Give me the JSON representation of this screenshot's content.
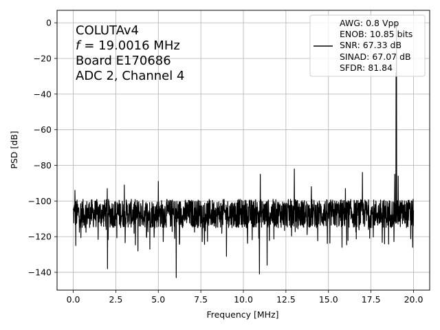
{
  "chart_data": {
    "type": "line",
    "xlabel": "Frequency [MHz]",
    "ylabel": "PSD [dB]",
    "xlim": [
      -0.95,
      20.95
    ],
    "ylim": [
      -150,
      7
    ],
    "xticks": [
      0.0,
      2.5,
      5.0,
      7.5,
      10.0,
      12.5,
      15.0,
      17.5,
      20.0
    ],
    "xtick_labels": [
      "0.0",
      "2.5",
      "5.0",
      "7.5",
      "10.0",
      "12.5",
      "15.0",
      "17.5",
      "20.0"
    ],
    "yticks": [
      0,
      -20,
      -40,
      -60,
      -80,
      -100,
      -120,
      -140
    ],
    "ytick_labels": [
      "0",
      "−20",
      "−40",
      "−60",
      "−80",
      "−100",
      "−120",
      "−140"
    ],
    "grid": true,
    "annotation": {
      "lines": [
        "COLUTAv4",
        "= 19.0016 MHz",
        "Board E170686",
        "ADC 2, Channel 4"
      ],
      "italic_symbol": "f"
    },
    "legend": {
      "position": "top-right",
      "lines": [
        "AWG: 0.8 Vpp",
        "ENOB: 10.85 bits",
        "SNR: 67.33 dB",
        "SINAD: 67.07 dB",
        "SFDR: 81.84"
      ]
    },
    "series": [
      {
        "color": "#000000",
        "noise_floor": -107,
        "noise_spread": 8,
        "x_start": 0.0,
        "x_end": 20.0,
        "points": 1600,
        "peaks": [
          {
            "x": 19.0016,
            "y": 0
          },
          {
            "x": 18.97,
            "y": -28
          },
          {
            "x": 13.0,
            "y": -82
          },
          {
            "x": 17.0,
            "y": -84
          },
          {
            "x": 11.0,
            "y": -85
          },
          {
            "x": 18.9,
            "y": -85
          },
          {
            "x": 19.1,
            "y": -86
          },
          {
            "x": 3.0,
            "y": -91
          },
          {
            "x": 5.0,
            "y": -89
          },
          {
            "x": 2.0,
            "y": -93
          },
          {
            "x": 0.1,
            "y": -94
          },
          {
            "x": 14.0,
            "y": -92
          },
          {
            "x": 16.0,
            "y": -93
          }
        ],
        "dips": [
          {
            "x": 2.02,
            "y": -138
          },
          {
            "x": 6.05,
            "y": -143
          },
          {
            "x": 10.95,
            "y": -141
          },
          {
            "x": 9.0,
            "y": -131
          },
          {
            "x": 11.4,
            "y": -136
          },
          {
            "x": 3.8,
            "y": -128
          },
          {
            "x": 0.15,
            "y": -125
          },
          {
            "x": 4.5,
            "y": -127
          },
          {
            "x": 15.8,
            "y": -126
          },
          {
            "x": 18.3,
            "y": -124
          },
          {
            "x": 19.95,
            "y": -126
          }
        ]
      }
    ]
  }
}
